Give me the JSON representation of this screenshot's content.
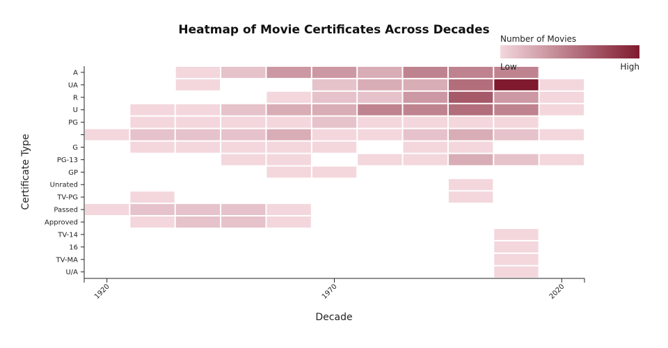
{
  "chart_data": {
    "type": "heatmap",
    "title": "Heatmap of Movie Certificates Across Decades",
    "xlabel": "Decade",
    "ylabel": "Certificate Type",
    "x_tick_labels": [
      "1920",
      "1970",
      "2020"
    ],
    "x_tick_values": [
      1920,
      1970,
      2020
    ],
    "decades": [
      1920,
      1930,
      1940,
      1950,
      1960,
      1970,
      1980,
      1990,
      2000,
      2010,
      2020
    ],
    "categories": [
      "A",
      "UA",
      "R",
      "U",
      "PG",
      "",
      "G",
      "PG-13",
      "GP",
      "Unrated",
      "TV-PG",
      "Passed",
      "Approved",
      "TV-14",
      "16",
      "TV-MA",
      "U/A"
    ],
    "values": [
      [
        null,
        null,
        1,
        2,
        4,
        4,
        3,
        5,
        5,
        5,
        null
      ],
      [
        null,
        null,
        1,
        null,
        null,
        2,
        3,
        3,
        6,
        10,
        1
      ],
      [
        null,
        null,
        null,
        null,
        1,
        2,
        2,
        4,
        7,
        4,
        1
      ],
      [
        null,
        1,
        1,
        2,
        3,
        3,
        5,
        5,
        6,
        5,
        1
      ],
      [
        null,
        1,
        1,
        1,
        1,
        2,
        1,
        1,
        1,
        1,
        null
      ],
      [
        1,
        2,
        2,
        2,
        3,
        1,
        1,
        2,
        3,
        2,
        1
      ],
      [
        null,
        1,
        1,
        1,
        1,
        1,
        null,
        1,
        1,
        null,
        null
      ],
      [
        null,
        null,
        null,
        1,
        1,
        null,
        1,
        1,
        3,
        2,
        1
      ],
      [
        null,
        null,
        null,
        null,
        1,
        1,
        null,
        null,
        null,
        null,
        null
      ],
      [
        null,
        null,
        null,
        null,
        null,
        null,
        null,
        null,
        1,
        null,
        null
      ],
      [
        null,
        1,
        null,
        null,
        null,
        null,
        null,
        null,
        1,
        null,
        null
      ],
      [
        1,
        2,
        2,
        2,
        1,
        null,
        null,
        null,
        null,
        null,
        null
      ],
      [
        null,
        1,
        2,
        2,
        1,
        null,
        null,
        null,
        null,
        null,
        null
      ],
      [
        null,
        null,
        null,
        null,
        null,
        null,
        null,
        null,
        null,
        1,
        null
      ],
      [
        null,
        null,
        null,
        null,
        null,
        null,
        null,
        null,
        null,
        1,
        null
      ],
      [
        null,
        null,
        null,
        null,
        null,
        null,
        null,
        null,
        null,
        1,
        null
      ],
      [
        null,
        null,
        null,
        null,
        null,
        null,
        null,
        null,
        null,
        1,
        null
      ]
    ],
    "colorscale": {
      "low": "#f3d7dd",
      "high": "#7f1a2e"
    },
    "colorbar": {
      "title": "Number of Movies",
      "low_label": "Low",
      "high_label": "High"
    },
    "legend_position": "top-right",
    "grid": false
  }
}
